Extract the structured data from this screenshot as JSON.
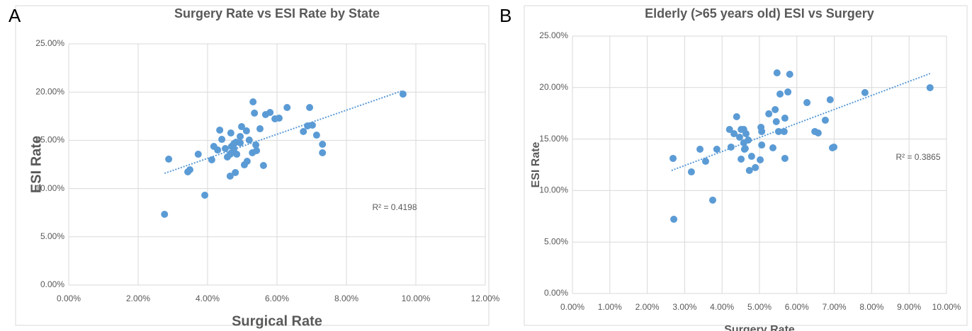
{
  "chart_data": [
    {
      "type": "scatter",
      "panel": "A",
      "title": "Surgery Rate vs ESI Rate by State",
      "xlabel": "Surgical Rate",
      "ylabel": "ESI Rate",
      "color": "#5b9bd5",
      "grid": true,
      "annotation": "R² = 0.4198",
      "x": [
        2.76,
        2.88,
        3.43,
        3.49,
        3.73,
        3.92,
        4.12,
        4.18,
        4.29,
        4.35,
        4.41,
        4.51,
        4.57,
        4.65,
        4.67,
        4.69,
        4.73,
        4.76,
        4.76,
        4.82,
        4.65,
        4.8,
        4.84,
        4.94,
        4.94,
        4.98,
        5.06,
        5.12,
        5.14,
        5.2,
        5.31,
        5.29,
        5.35,
        5.39,
        5.41,
        5.51,
        5.61,
        5.67,
        5.8,
        5.94,
        6.06,
        6.29,
        6.76,
        6.88,
        6.94,
        7.02,
        7.14,
        7.31,
        7.31,
        9.63
      ],
      "values": [
        7.33,
        13.05,
        11.73,
        11.95,
        13.56,
        9.31,
        12.98,
        14.37,
        14.0,
        16.06,
        15.1,
        14.15,
        13.27,
        13.56,
        15.76,
        14.37,
        13.78,
        14.15,
        14.66,
        14.81,
        11.29,
        11.66,
        13.56,
        15.4,
        14.74,
        16.42,
        12.46,
        15.98,
        12.83,
        15.03,
        18.99,
        13.71,
        17.82,
        14.52,
        13.93,
        16.2,
        12.39,
        17.67,
        17.89,
        17.23,
        17.3,
        18.4,
        15.91,
        16.5,
        18.4,
        16.57,
        15.54,
        14.59,
        13.71,
        19.79
      ],
      "trendline": {
        "x": [
          2.76,
          9.63
        ],
        "values": [
          11.58,
          20.16
        ]
      },
      "xlim": [
        0,
        12
      ],
      "ylim": [
        0,
        25
      ],
      "xticks": [
        {
          "value": 0,
          "label": "0.00%"
        },
        {
          "value": 2,
          "label": "2.00%"
        },
        {
          "value": 4,
          "label": "4.00%"
        },
        {
          "value": 6,
          "label": "6.00%"
        },
        {
          "value": 8,
          "label": "8.00%"
        },
        {
          "value": 10,
          "label": "10.00%"
        },
        {
          "value": 12,
          "label": "12.00%"
        }
      ],
      "yticks": [
        {
          "value": 0,
          "label": "0.00%"
        },
        {
          "value": 5,
          "label": "5.00%"
        },
        {
          "value": 10,
          "label": "10.00%"
        },
        {
          "value": 15,
          "label": "15.00%"
        },
        {
          "value": 20,
          "label": "20.00%"
        },
        {
          "value": 25,
          "label": "25.00%"
        }
      ]
    },
    {
      "type": "scatter",
      "panel": "B",
      "title": "Elderly (>65 years old) ESI vs Surgery",
      "xlabel": "Surgery Rate",
      "ylabel": "ESI Rate",
      "color": "#5b9bd5",
      "grid": true,
      "annotation": "R² = 0.3865",
      "x": [
        2.69,
        2.71,
        3.18,
        3.41,
        3.56,
        3.75,
        3.86,
        4.2,
        4.24,
        4.32,
        4.39,
        4.47,
        4.51,
        4.51,
        4.58,
        4.58,
        4.6,
        4.64,
        4.62,
        4.7,
        4.73,
        4.79,
        4.89,
        5.02,
        5.04,
        5.06,
        5.06,
        5.25,
        5.36,
        5.42,
        5.45,
        5.47,
        5.51,
        5.55,
        5.66,
        5.68,
        5.68,
        5.76,
        5.81,
        6.27,
        6.48,
        6.57,
        6.76,
        6.89,
        6.95,
        6.99,
        7.82,
        9.56
      ],
      "values": [
        13.12,
        7.21,
        11.81,
        14.01,
        12.84,
        9.07,
        14.01,
        15.93,
        14.22,
        15.52,
        17.17,
        15.18,
        15.93,
        13.05,
        15.93,
        14.63,
        14.01,
        15.52,
        14.08,
        14.9,
        11.95,
        13.32,
        12.23,
        12.98,
        16.14,
        15.73,
        14.42,
        17.45,
        14.15,
        17.86,
        16.69,
        21.43,
        15.73,
        19.37,
        15.73,
        13.12,
        17.03,
        19.57,
        21.29,
        18.54,
        15.73,
        15.59,
        16.83,
        18.82,
        14.15,
        14.22,
        19.51,
        19.99
      ],
      "trendline": {
        "x": [
          2.65,
          9.56
        ],
        "values": [
          11.95,
          21.36
        ]
      },
      "xlim": [
        0,
        10
      ],
      "ylim": [
        0,
        25
      ],
      "xticks": [
        {
          "value": 0,
          "label": "0.00%"
        },
        {
          "value": 1,
          "label": "1.00%"
        },
        {
          "value": 2,
          "label": "2.00%"
        },
        {
          "value": 3,
          "label": "3.00%"
        },
        {
          "value": 4,
          "label": "4.00%"
        },
        {
          "value": 5,
          "label": "5.00%"
        },
        {
          "value": 6,
          "label": "6.00%"
        },
        {
          "value": 7,
          "label": "7.00%"
        },
        {
          "value": 8,
          "label": "8.00%"
        },
        {
          "value": 9,
          "label": "9.00%"
        },
        {
          "value": 10,
          "label": "10.00%"
        }
      ],
      "yticks": [
        {
          "value": 0,
          "label": "0.00%"
        },
        {
          "value": 5,
          "label": "5.00%"
        },
        {
          "value": 10,
          "label": "10.00%"
        },
        {
          "value": 15,
          "label": "15.00%"
        },
        {
          "value": 20,
          "label": "20.00%"
        },
        {
          "value": 25,
          "label": "25.00%"
        }
      ]
    }
  ]
}
